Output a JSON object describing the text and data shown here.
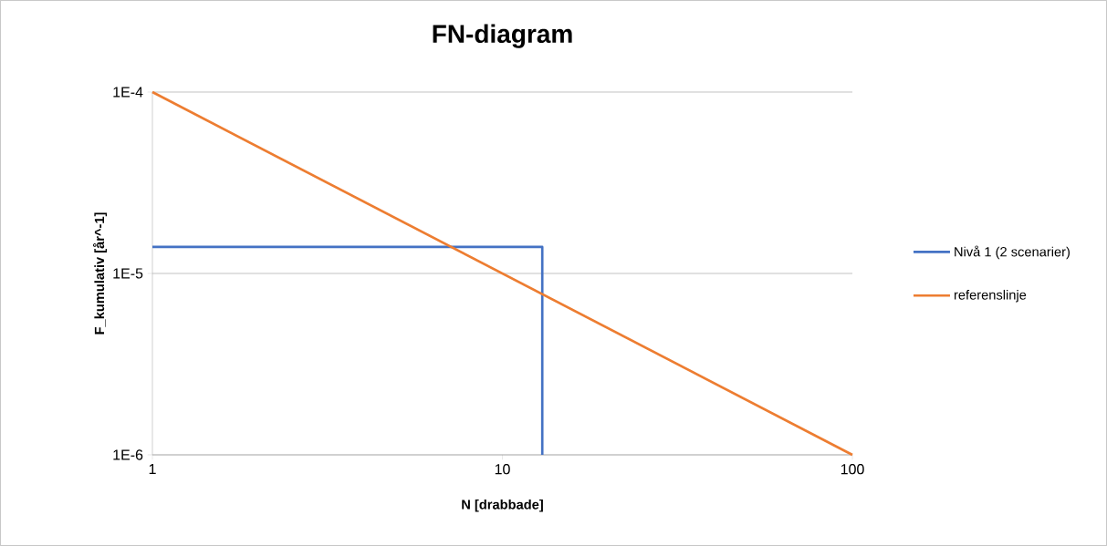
{
  "chart_data": {
    "type": "line",
    "title": "FN-diagram",
    "xlabel": "N [drabbade]",
    "ylabel": "F_kumulativ [år^-1]",
    "log": "xy",
    "grid": "y",
    "legend": "right",
    "marker": "none",
    "line_style": "solid",
    "xlim": [
      1,
      100
    ],
    "ylim": [
      1e-06,
      0.0001
    ],
    "xticks": [
      1,
      10,
      100
    ],
    "yticks": [
      {
        "value": 1e-06,
        "label": "1E-6"
      },
      {
        "value": 1e-05,
        "label": "1E-5"
      },
      {
        "value": 0.0001,
        "label": "1E-4"
      }
    ],
    "series": [
      {
        "name": "Nivå 1 (2 scenarier)",
        "color": "#4472c4",
        "x": [
          1,
          13,
          13
        ],
        "values": [
          1.4e-05,
          1.4e-05,
          1e-06
        ]
      },
      {
        "name": "referenslinje",
        "color": "#ed7d31",
        "x": [
          1,
          100
        ],
        "values": [
          0.0001,
          1e-06
        ]
      }
    ]
  }
}
